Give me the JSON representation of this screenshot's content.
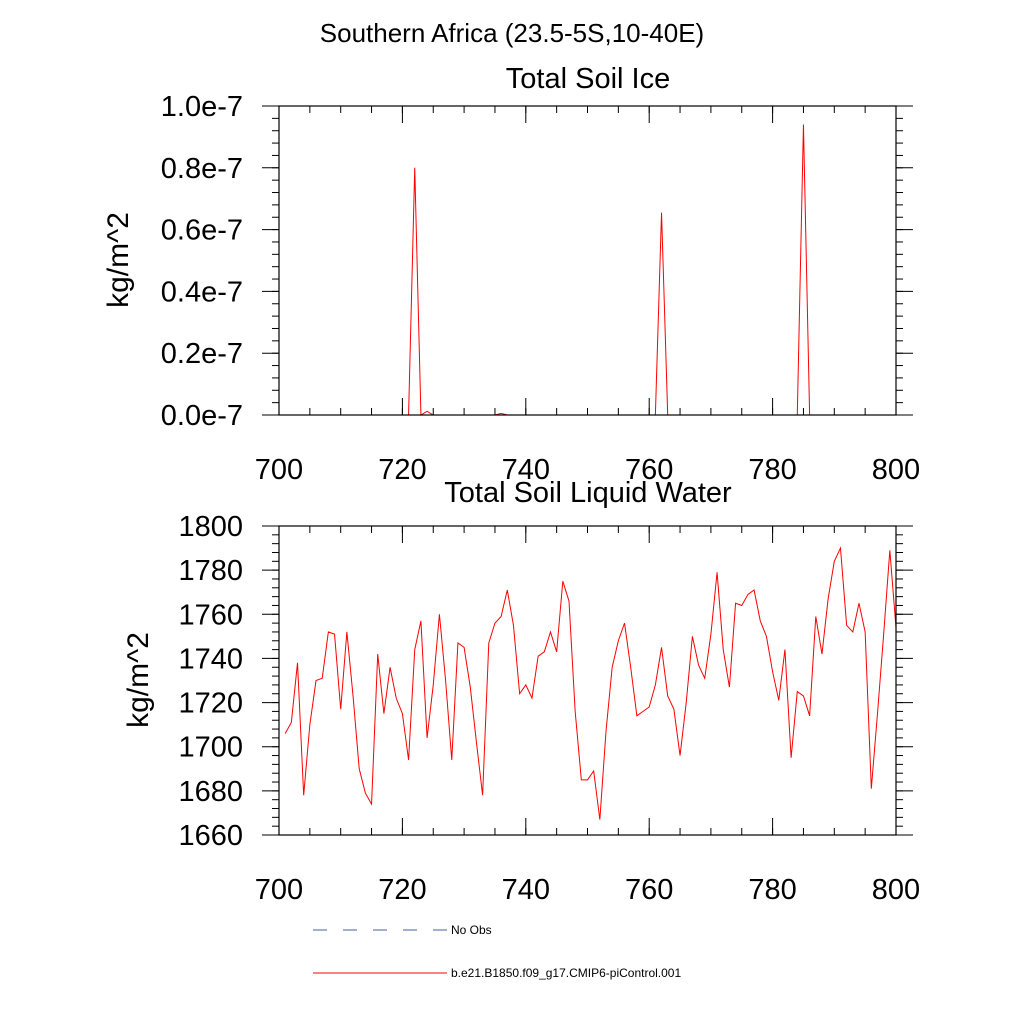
{
  "page_title": "Southern Africa (23.5-5S,10-40E)",
  "chart_data": [
    {
      "type": "line",
      "title": "Total Soil Ice",
      "xlabel": "",
      "ylabel": "kg/m^2",
      "xlim": [
        700,
        800
      ],
      "ylim": [
        0,
        1e-07
      ],
      "xticks": [
        700,
        720,
        740,
        760,
        780,
        800
      ],
      "xtick_labels": [
        "700",
        "720",
        "740",
        "760",
        "780",
        "800"
      ],
      "yticks": [
        0,
        2e-08,
        4e-08,
        6e-08,
        8e-08,
        1e-07
      ],
      "ytick_labels": [
        "0.0e-7",
        "0.2e-7",
        "0.4e-7",
        "0.6e-7",
        "0.8e-7",
        "1.0e-7"
      ],
      "grid": false,
      "series": [
        {
          "name": "b.e21.B1850.f09_g17.CMIP6-piControl.001",
          "color": "#ff0000",
          "x": [
            701,
            702,
            703,
            704,
            705,
            706,
            707,
            708,
            709,
            710,
            711,
            712,
            713,
            714,
            715,
            716,
            717,
            718,
            719,
            720,
            721,
            722,
            723,
            724,
            725,
            726,
            727,
            728,
            729,
            730,
            731,
            732,
            733,
            734,
            735,
            736,
            737,
            738,
            739,
            740,
            741,
            742,
            743,
            744,
            745,
            746,
            747,
            748,
            749,
            750,
            751,
            752,
            753,
            754,
            755,
            756,
            757,
            758,
            759,
            760,
            761,
            762,
            763,
            764,
            765,
            766,
            767,
            768,
            769,
            770,
            771,
            772,
            773,
            774,
            775,
            776,
            777,
            778,
            779,
            780,
            781,
            782,
            783,
            784,
            785,
            786,
            787,
            788,
            789,
            790,
            791,
            792,
            793,
            794,
            795,
            796,
            797,
            798,
            799,
            800
          ],
          "values": [
            0,
            0,
            0,
            0,
            0,
            0,
            0,
            0,
            0,
            0,
            0,
            0,
            0,
            0,
            0,
            0,
            0,
            0,
            0,
            0,
            0,
            8e-08,
            0,
            1.2e-09,
            0,
            0,
            0,
            0,
            0,
            0,
            0,
            0,
            0,
            0,
            0,
            5e-10,
            0,
            0,
            0,
            0,
            0,
            0,
            0,
            0,
            0,
            0,
            0,
            0,
            0,
            0,
            0,
            0,
            0,
            0,
            0,
            0,
            0,
            0,
            0,
            0,
            0,
            6.55e-08,
            0,
            0,
            0,
            0,
            0,
            0,
            0,
            0,
            0,
            0,
            0,
            0,
            0,
            0,
            0,
            0,
            0,
            0,
            0,
            0,
            0,
            0,
            9.4e-08,
            0,
            0,
            0,
            0,
            0,
            0,
            0,
            0,
            0,
            0,
            0,
            0,
            0,
            0,
            0
          ]
        }
      ]
    },
    {
      "type": "line",
      "title": "Total Soil Liquid Water",
      "xlabel": "",
      "ylabel": "kg/m^2",
      "xlim": [
        700,
        800
      ],
      "ylim": [
        1660,
        1800
      ],
      "xticks": [
        700,
        720,
        740,
        760,
        780,
        800
      ],
      "xtick_labels": [
        "700",
        "720",
        "740",
        "760",
        "780",
        "800"
      ],
      "yticks": [
        1660,
        1680,
        1700,
        1720,
        1740,
        1760,
        1780,
        1800
      ],
      "ytick_labels": [
        "1660",
        "1680",
        "1700",
        "1720",
        "1740",
        "1760",
        "1780",
        "1800"
      ],
      "grid": false,
      "series": [
        {
          "name": "b.e21.B1850.f09_g17.CMIP6-piControl.001",
          "color": "#ff0000",
          "x": [
            701,
            702,
            703,
            704,
            705,
            706,
            707,
            708,
            709,
            710,
            711,
            712,
            713,
            714,
            715,
            716,
            717,
            718,
            719,
            720,
            721,
            722,
            723,
            724,
            725,
            726,
            727,
            728,
            729,
            730,
            731,
            732,
            733,
            734,
            735,
            736,
            737,
            738,
            739,
            740,
            741,
            742,
            743,
            744,
            745,
            746,
            747,
            748,
            749,
            750,
            751,
            752,
            753,
            754,
            755,
            756,
            757,
            758,
            759,
            760,
            761,
            762,
            763,
            764,
            765,
            766,
            767,
            768,
            769,
            770,
            771,
            772,
            773,
            774,
            775,
            776,
            777,
            778,
            779,
            780,
            781,
            782,
            783,
            784,
            785,
            786,
            787,
            788,
            789,
            790,
            791,
            792,
            793,
            794,
            795,
            796,
            797,
            798,
            799,
            800
          ],
          "values": [
            1706,
            1711,
            1738,
            1678,
            1710,
            1730,
            1731,
            1752,
            1751,
            1717,
            1752,
            1723,
            1690,
            1679,
            1674,
            1742,
            1715,
            1736,
            1722,
            1715,
            1694,
            1744,
            1757,
            1704,
            1728,
            1760,
            1730,
            1694,
            1747,
            1745,
            1727,
            1702,
            1678,
            1747,
            1756,
            1759,
            1771,
            1755,
            1724,
            1728,
            1722,
            1741,
            1743,
            1752,
            1743,
            1775,
            1766,
            1716,
            1685,
            1685,
            1689,
            1667,
            1707,
            1736,
            1748,
            1756,
            1736,
            1714,
            1716,
            1718,
            1728,
            1745,
            1723,
            1717,
            1696,
            1720,
            1750,
            1737,
            1731,
            1751,
            1779,
            1744,
            1727,
            1765,
            1764,
            1769,
            1771,
            1757,
            1750,
            1734,
            1721,
            1744,
            1695,
            1725,
            1723,
            1714,
            1759,
            1742,
            1767,
            1784,
            1790,
            1755,
            1752,
            1765,
            1752,
            1681,
            1715,
            1751,
            1789,
            1754
          ]
        }
      ]
    }
  ],
  "legend": {
    "placement": "bottom",
    "entries": [
      {
        "label": "No Obs",
        "style": "dashed",
        "color": "#4a5d9c"
      },
      {
        "label": "b.e21.B1850.f09_g17.CMIP6-piControl.001",
        "style": "solid",
        "color": "#ff0000"
      }
    ]
  }
}
